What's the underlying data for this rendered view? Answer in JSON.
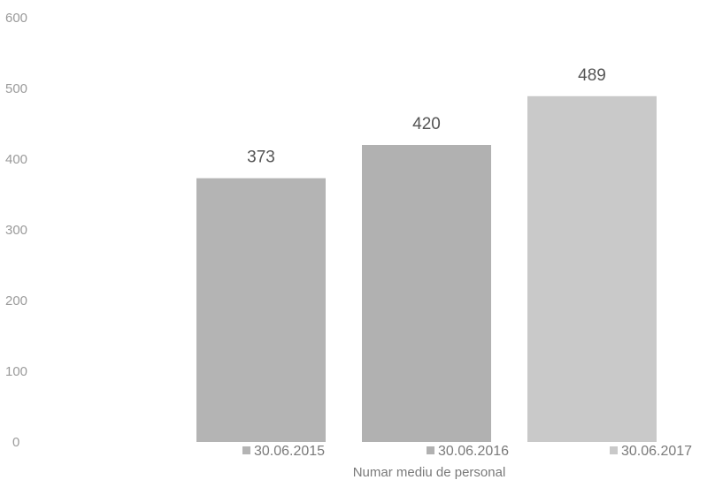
{
  "chart_data": {
    "type": "bar",
    "categories": [
      "30.06.2015",
      "30.06.2016",
      "30.06.2017"
    ],
    "values": [
      373,
      420,
      489
    ],
    "data_labels": [
      "373",
      "420",
      "489"
    ],
    "y_ticks": [
      "0",
      "100",
      "200",
      "300",
      "400",
      "500",
      "600"
    ],
    "ylim": [
      0,
      600
    ],
    "xlabel": "Numar mediu de personal",
    "legend": [
      "30.06.2015",
      "30.06.2016",
      "30.06.2017"
    ],
    "legend_placement": "bottom",
    "grid": false,
    "colors": [
      "#b4b4b4",
      "#b1b1b1",
      "#c9c9c9"
    ]
  }
}
